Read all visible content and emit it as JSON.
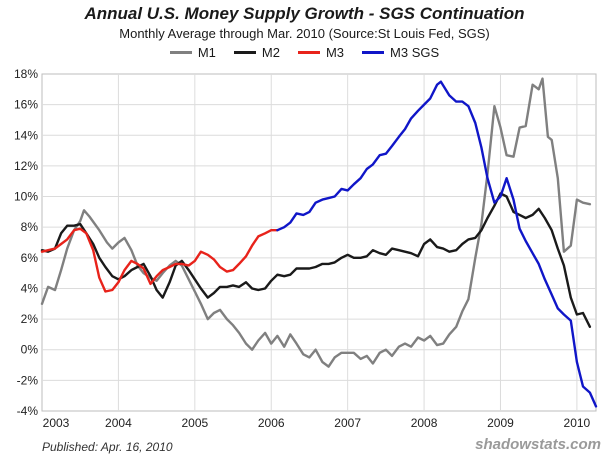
{
  "chart_data": {
    "type": "line",
    "title": "Annual U.S. Money Supply Growth - SGS Continuation",
    "subtitle": "Monthly Average through Mar. 2010  (Source:St Louis Fed, SGS)",
    "y_ticks": [
      "18%",
      "16%",
      "14%",
      "12%",
      "10%",
      "8%",
      "6%",
      "4%",
      "2%",
      "0%",
      "-2%",
      "-4%"
    ],
    "x_ticks": [
      "2003",
      "2004",
      "2005",
      "2006",
      "2007",
      "2008",
      "2009",
      "2010"
    ],
    "ylim": [
      -4,
      18
    ],
    "xlim": [
      2003.0,
      2010.25
    ],
    "grid": true,
    "legend_position": "top-center",
    "series": [
      {
        "name": "M1",
        "color": "#808080",
        "points": [
          [
            2003.0,
            3.0
          ],
          [
            2003.08,
            4.1
          ],
          [
            2003.17,
            3.9
          ],
          [
            2003.25,
            5.2
          ],
          [
            2003.33,
            6.6
          ],
          [
            2003.42,
            7.8
          ],
          [
            2003.5,
            8.4
          ],
          [
            2003.55,
            9.1
          ],
          [
            2003.62,
            8.7
          ],
          [
            2003.75,
            7.8
          ],
          [
            2003.85,
            7.0
          ],
          [
            2003.92,
            6.6
          ],
          [
            2004.0,
            7.0
          ],
          [
            2004.08,
            7.3
          ],
          [
            2004.17,
            6.5
          ],
          [
            2004.25,
            5.5
          ],
          [
            2004.33,
            5.0
          ],
          [
            2004.42,
            4.7
          ],
          [
            2004.5,
            4.5
          ],
          [
            2004.58,
            5.0
          ],
          [
            2004.67,
            5.5
          ],
          [
            2004.75,
            5.8
          ],
          [
            2004.83,
            5.5
          ],
          [
            2004.92,
            4.6
          ],
          [
            2005.0,
            3.8
          ],
          [
            2005.08,
            3.0
          ],
          [
            2005.17,
            2.0
          ],
          [
            2005.25,
            2.4
          ],
          [
            2005.33,
            2.6
          ],
          [
            2005.42,
            2.0
          ],
          [
            2005.5,
            1.6
          ],
          [
            2005.58,
            1.1
          ],
          [
            2005.67,
            0.4
          ],
          [
            2005.75,
            0.0
          ],
          [
            2005.83,
            0.6
          ],
          [
            2005.92,
            1.1
          ],
          [
            2006.0,
            0.4
          ],
          [
            2006.08,
            0.9
          ],
          [
            2006.17,
            0.2
          ],
          [
            2006.25,
            1.0
          ],
          [
            2006.33,
            0.4
          ],
          [
            2006.42,
            -0.3
          ],
          [
            2006.5,
            -0.5
          ],
          [
            2006.58,
            0.0
          ],
          [
            2006.67,
            -0.8
          ],
          [
            2006.75,
            -1.1
          ],
          [
            2006.83,
            -0.5
          ],
          [
            2006.92,
            -0.2
          ],
          [
            2007.0,
            -0.2
          ],
          [
            2007.08,
            -0.2
          ],
          [
            2007.17,
            -0.6
          ],
          [
            2007.25,
            -0.4
          ],
          [
            2007.33,
            -0.9
          ],
          [
            2007.42,
            -0.2
          ],
          [
            2007.5,
            0.0
          ],
          [
            2007.58,
            -0.4
          ],
          [
            2007.67,
            0.2
          ],
          [
            2007.75,
            0.4
          ],
          [
            2007.83,
            0.2
          ],
          [
            2007.92,
            0.8
          ],
          [
            2008.0,
            0.6
          ],
          [
            2008.08,
            0.9
          ],
          [
            2008.17,
            0.3
          ],
          [
            2008.25,
            0.4
          ],
          [
            2008.33,
            1.0
          ],
          [
            2008.42,
            1.5
          ],
          [
            2008.5,
            2.5
          ],
          [
            2008.58,
            3.3
          ],
          [
            2008.67,
            6.0
          ],
          [
            2008.75,
            8.2
          ],
          [
            2008.83,
            11.5
          ],
          [
            2008.92,
            15.9
          ],
          [
            2009.0,
            14.5
          ],
          [
            2009.08,
            12.7
          ],
          [
            2009.17,
            12.6
          ],
          [
            2009.25,
            14.5
          ],
          [
            2009.33,
            14.6
          ],
          [
            2009.42,
            17.3
          ],
          [
            2009.5,
            17.0
          ],
          [
            2009.55,
            17.7
          ],
          [
            2009.62,
            13.9
          ],
          [
            2009.67,
            13.7
          ],
          [
            2009.75,
            11.2
          ],
          [
            2009.83,
            6.4
          ],
          [
            2009.92,
            6.8
          ],
          [
            2010.0,
            9.8
          ],
          [
            2010.08,
            9.6
          ],
          [
            2010.17,
            9.5
          ]
        ]
      },
      {
        "name": "M2",
        "color": "#1a1a1a",
        "points": [
          [
            2003.0,
            6.5
          ],
          [
            2003.08,
            6.4
          ],
          [
            2003.17,
            6.6
          ],
          [
            2003.25,
            7.6
          ],
          [
            2003.33,
            8.1
          ],
          [
            2003.42,
            8.1
          ],
          [
            2003.5,
            8.2
          ],
          [
            2003.58,
            7.6
          ],
          [
            2003.67,
            6.9
          ],
          [
            2003.75,
            6.0
          ],
          [
            2003.83,
            5.4
          ],
          [
            2003.92,
            4.8
          ],
          [
            2004.0,
            4.6
          ],
          [
            2004.08,
            4.8
          ],
          [
            2004.17,
            5.2
          ],
          [
            2004.25,
            5.4
          ],
          [
            2004.33,
            5.6
          ],
          [
            2004.42,
            4.8
          ],
          [
            2004.5,
            3.9
          ],
          [
            2004.58,
            3.4
          ],
          [
            2004.67,
            4.4
          ],
          [
            2004.75,
            5.5
          ],
          [
            2004.83,
            5.8
          ],
          [
            2004.92,
            5.2
          ],
          [
            2005.0,
            4.6
          ],
          [
            2005.08,
            4.0
          ],
          [
            2005.17,
            3.4
          ],
          [
            2005.25,
            3.7
          ],
          [
            2005.33,
            4.1
          ],
          [
            2005.42,
            4.1
          ],
          [
            2005.5,
            4.2
          ],
          [
            2005.58,
            4.1
          ],
          [
            2005.67,
            4.4
          ],
          [
            2005.75,
            4.0
          ],
          [
            2005.83,
            3.9
          ],
          [
            2005.92,
            4.0
          ],
          [
            2006.0,
            4.5
          ],
          [
            2006.08,
            4.9
          ],
          [
            2006.17,
            4.8
          ],
          [
            2006.25,
            4.9
          ],
          [
            2006.33,
            5.3
          ],
          [
            2006.42,
            5.3
          ],
          [
            2006.5,
            5.3
          ],
          [
            2006.58,
            5.4
          ],
          [
            2006.67,
            5.6
          ],
          [
            2006.75,
            5.6
          ],
          [
            2006.83,
            5.7
          ],
          [
            2006.92,
            6.0
          ],
          [
            2007.0,
            6.2
          ],
          [
            2007.08,
            6.0
          ],
          [
            2007.17,
            6.0
          ],
          [
            2007.25,
            6.1
          ],
          [
            2007.33,
            6.5
          ],
          [
            2007.42,
            6.3
          ],
          [
            2007.5,
            6.2
          ],
          [
            2007.58,
            6.6
          ],
          [
            2007.67,
            6.5
          ],
          [
            2007.75,
            6.4
          ],
          [
            2007.83,
            6.3
          ],
          [
            2007.92,
            6.1
          ],
          [
            2008.0,
            6.9
          ],
          [
            2008.08,
            7.2
          ],
          [
            2008.17,
            6.7
          ],
          [
            2008.25,
            6.6
          ],
          [
            2008.33,
            6.4
          ],
          [
            2008.42,
            6.5
          ],
          [
            2008.5,
            6.9
          ],
          [
            2008.58,
            7.2
          ],
          [
            2008.67,
            7.3
          ],
          [
            2008.75,
            7.8
          ],
          [
            2008.83,
            8.6
          ],
          [
            2008.92,
            9.4
          ],
          [
            2009.0,
            10.2
          ],
          [
            2009.08,
            10.0
          ],
          [
            2009.17,
            9.0
          ],
          [
            2009.25,
            8.8
          ],
          [
            2009.33,
            8.6
          ],
          [
            2009.42,
            8.8
          ],
          [
            2009.5,
            9.2
          ],
          [
            2009.58,
            8.6
          ],
          [
            2009.67,
            7.8
          ],
          [
            2009.75,
            6.6
          ],
          [
            2009.83,
            5.5
          ],
          [
            2009.92,
            3.4
          ],
          [
            2010.0,
            2.3
          ],
          [
            2010.08,
            2.4
          ],
          [
            2010.17,
            1.5
          ]
        ]
      },
      {
        "name": "M3",
        "color": "#e8231b",
        "points": [
          [
            2003.0,
            6.4
          ],
          [
            2003.08,
            6.5
          ],
          [
            2003.17,
            6.6
          ],
          [
            2003.25,
            6.9
          ],
          [
            2003.33,
            7.2
          ],
          [
            2003.42,
            7.8
          ],
          [
            2003.5,
            7.9
          ],
          [
            2003.58,
            7.6
          ],
          [
            2003.67,
            6.5
          ],
          [
            2003.75,
            4.7
          ],
          [
            2003.83,
            3.8
          ],
          [
            2003.92,
            3.9
          ],
          [
            2004.0,
            4.4
          ],
          [
            2004.08,
            5.2
          ],
          [
            2004.17,
            5.8
          ],
          [
            2004.25,
            5.6
          ],
          [
            2004.33,
            5.3
          ],
          [
            2004.42,
            4.3
          ],
          [
            2004.5,
            4.8
          ],
          [
            2004.58,
            5.2
          ],
          [
            2004.67,
            5.4
          ],
          [
            2004.75,
            5.6
          ],
          [
            2004.83,
            5.6
          ],
          [
            2004.92,
            5.5
          ],
          [
            2005.0,
            5.8
          ],
          [
            2005.08,
            6.4
          ],
          [
            2005.17,
            6.2
          ],
          [
            2005.25,
            5.9
          ],
          [
            2005.33,
            5.4
          ],
          [
            2005.42,
            5.1
          ],
          [
            2005.5,
            5.2
          ],
          [
            2005.58,
            5.6
          ],
          [
            2005.67,
            6.1
          ],
          [
            2005.75,
            6.8
          ],
          [
            2005.83,
            7.4
          ],
          [
            2005.92,
            7.6
          ],
          [
            2006.0,
            7.8
          ],
          [
            2006.08,
            7.8
          ]
        ]
      },
      {
        "name": "M3 SGS",
        "color": "#1016c8",
        "points": [
          [
            2006.08,
            7.8
          ],
          [
            2006.17,
            8.0
          ],
          [
            2006.25,
            8.3
          ],
          [
            2006.33,
            8.9
          ],
          [
            2006.42,
            8.8
          ],
          [
            2006.5,
            9.0
          ],
          [
            2006.58,
            9.6
          ],
          [
            2006.67,
            9.8
          ],
          [
            2006.75,
            9.9
          ],
          [
            2006.83,
            10.0
          ],
          [
            2006.92,
            10.5
          ],
          [
            2007.0,
            10.4
          ],
          [
            2007.08,
            10.8
          ],
          [
            2007.17,
            11.2
          ],
          [
            2007.25,
            11.8
          ],
          [
            2007.33,
            12.1
          ],
          [
            2007.42,
            12.7
          ],
          [
            2007.5,
            12.8
          ],
          [
            2007.58,
            13.3
          ],
          [
            2007.67,
            13.9
          ],
          [
            2007.75,
            14.4
          ],
          [
            2007.83,
            15.1
          ],
          [
            2007.92,
            15.6
          ],
          [
            2008.0,
            16.0
          ],
          [
            2008.08,
            16.4
          ],
          [
            2008.17,
            17.3
          ],
          [
            2008.22,
            17.5
          ],
          [
            2008.33,
            16.6
          ],
          [
            2008.42,
            16.2
          ],
          [
            2008.5,
            16.2
          ],
          [
            2008.58,
            15.9
          ],
          [
            2008.67,
            14.8
          ],
          [
            2008.75,
            13.2
          ],
          [
            2008.83,
            11.2
          ],
          [
            2008.92,
            9.6
          ],
          [
            2009.0,
            10.0
          ],
          [
            2009.08,
            11.2
          ],
          [
            2009.17,
            9.8
          ],
          [
            2009.25,
            7.9
          ],
          [
            2009.33,
            7.1
          ],
          [
            2009.42,
            6.3
          ],
          [
            2009.5,
            5.6
          ],
          [
            2009.58,
            4.6
          ],
          [
            2009.67,
            3.6
          ],
          [
            2009.75,
            2.7
          ],
          [
            2009.83,
            2.3
          ],
          [
            2009.92,
            1.9
          ],
          [
            2010.0,
            -0.8
          ],
          [
            2010.08,
            -2.4
          ],
          [
            2010.17,
            -2.8
          ],
          [
            2010.25,
            -3.7
          ]
        ]
      }
    ]
  },
  "footer": {
    "published": "Published: Apr. 16, 2010",
    "brand": "shadowstats.com"
  }
}
